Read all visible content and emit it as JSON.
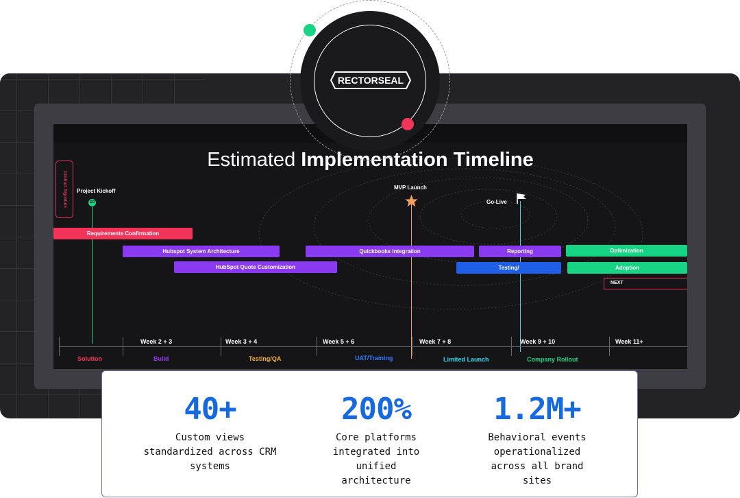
{
  "brand": {
    "logo_text": "RECTORSEAL"
  },
  "slide": {
    "title_light": "Estimated",
    "title_bold": "Implementation Timeline",
    "contract_signature": "Contract Signature",
    "milestones": {
      "kickoff": {
        "label": "Project Kickoff",
        "marker": "GO"
      },
      "mvp": {
        "label": "MVP Launch"
      },
      "golive": {
        "label": "Go-Live"
      }
    },
    "bars": {
      "requirements": "Requirements Confirmation",
      "architecture": "Hubspot System Architecture",
      "quote": "HubSpot Quote Customization",
      "quickbooks": "Quickbooks Integration",
      "reporting": "Reporting",
      "testing": "Testing/",
      "optimization": "Optimization",
      "adoption": "Adoption",
      "next": "NEXT"
    },
    "weeks": [
      "Week 2 + 3",
      "Week 3 + 4",
      "Week 5 + 6",
      "Week 7 + 8",
      "Week 9 + 10",
      "Week 11+"
    ],
    "phases": {
      "solution": "Solution",
      "build": "Build",
      "testing": "Testing/QA",
      "uat": "UAT/Training",
      "limited": "Limited Launch",
      "rollout": "Company Rollout"
    }
  },
  "stats": [
    {
      "value": "40+",
      "line1": "Custom views",
      "line2": "standardized across CRM",
      "line3": "systems",
      "line4": ""
    },
    {
      "value": "200%",
      "line1": "Core platforms",
      "line2": "integrated into",
      "line3": "unified",
      "line4": "architecture"
    },
    {
      "value": "1.2M+",
      "line1": "Behavioral events",
      "line2": "operationalized",
      "line3": "across all brand",
      "line4": "sites"
    }
  ],
  "colors": {
    "red": "#f2345b",
    "purple": "#8a3af0",
    "blue": "#1f5fe8",
    "green": "#17d384",
    "stat_blue": "#1769e0",
    "build": "#8a3af0",
    "testing": "#f2b233",
    "uat": "#2f7bff",
    "limited": "#27d6f0",
    "rollout": "#17d384"
  }
}
